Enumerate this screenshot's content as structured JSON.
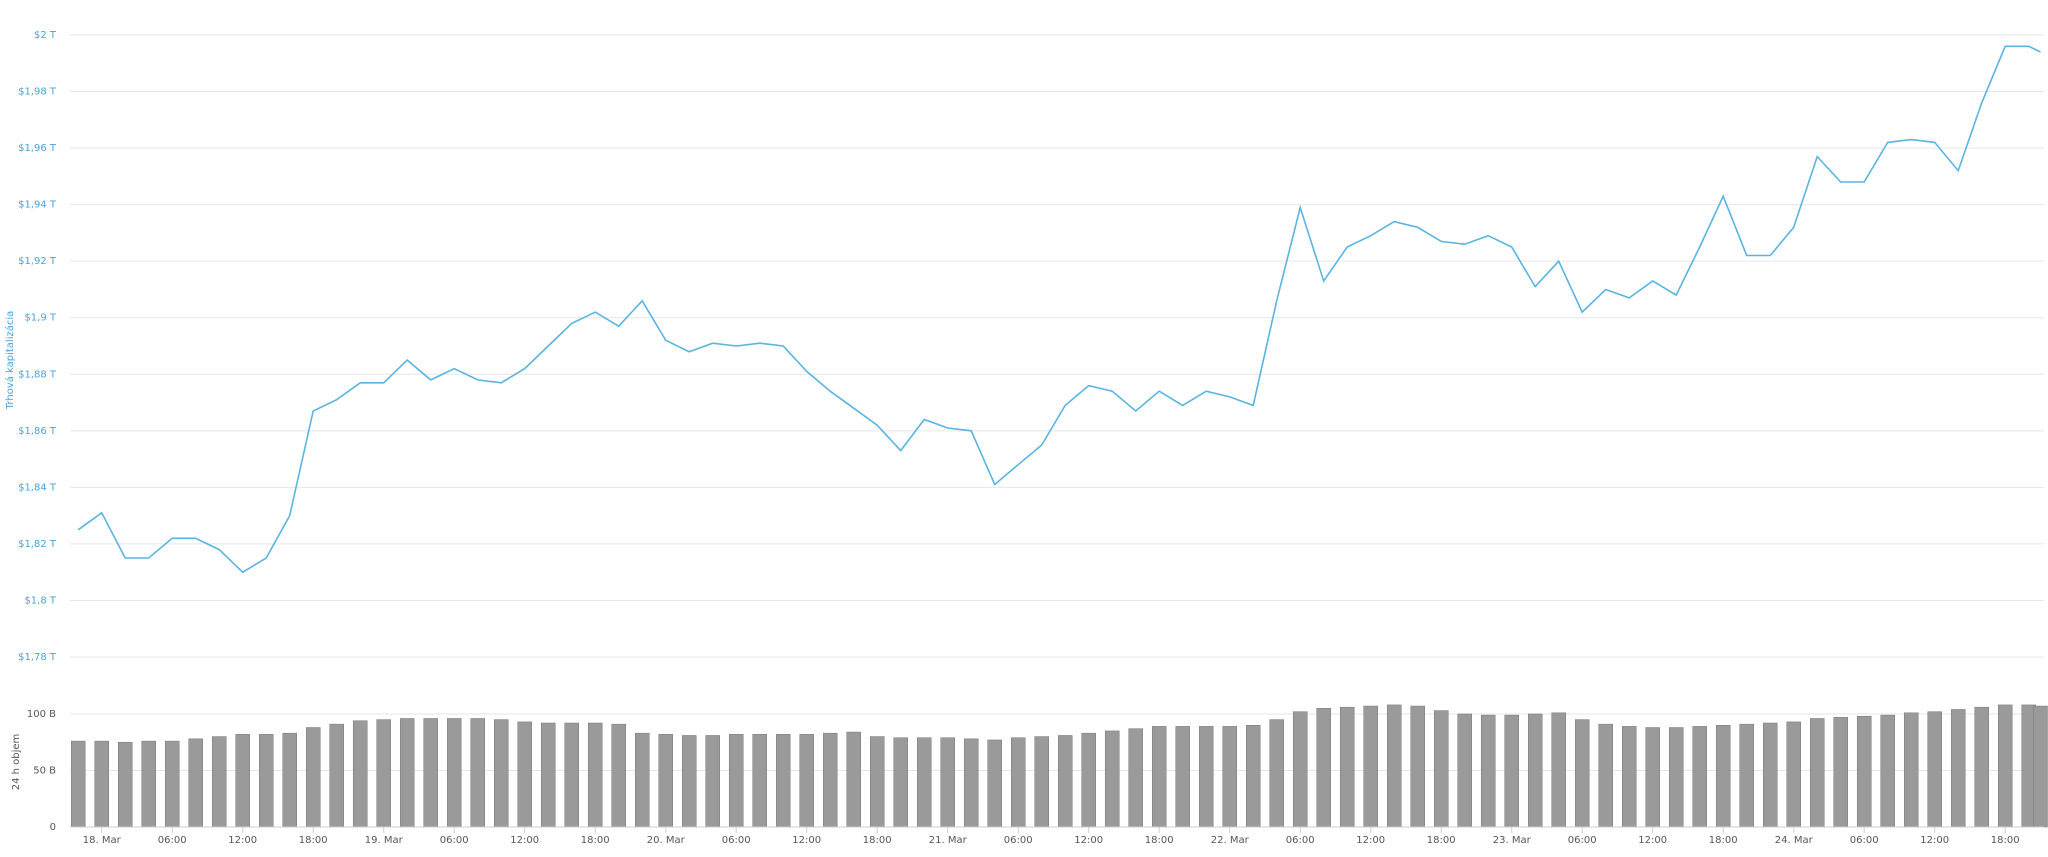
{
  "chart_data": [
    {
      "type": "line",
      "y_label": "Trhová kapitalizácia",
      "color": "#5ab4e0",
      "grid": true,
      "xlim": [
        -2.7,
        165.3
      ],
      "ylim": [
        1.78,
        2
      ],
      "yticks": [
        {
          "value": 1.78,
          "label": "$1,78 T"
        },
        {
          "value": 1.8,
          "label": "$1,8 T"
        },
        {
          "value": 1.82,
          "label": "$1,82 T"
        },
        {
          "value": 1.84,
          "label": "$1,84 T"
        },
        {
          "value": 1.86,
          "label": "$1,86 T"
        },
        {
          "value": 1.88,
          "label": "$1,88 T"
        },
        {
          "value": 1.9,
          "label": "$1,9 T"
        },
        {
          "value": 1.92,
          "label": "$1,92 T"
        },
        {
          "value": 1.94,
          "label": "$1,94 T"
        },
        {
          "value": 1.96,
          "label": "$1,96 T"
        },
        {
          "value": 1.98,
          "label": "$1,98 T"
        },
        {
          "value": 2,
          "label": "$2 T"
        }
      ],
      "x": [
        -2,
        0,
        2,
        4,
        6,
        8,
        10,
        12,
        14,
        16,
        18,
        20,
        22,
        24,
        26,
        28,
        30,
        32,
        34,
        36,
        38,
        40,
        42,
        44,
        46,
        48,
        50,
        52,
        54,
        56,
        58,
        60,
        62,
        64,
        66,
        68,
        70,
        72,
        74,
        76,
        78,
        80,
        82,
        84,
        86,
        88,
        90,
        92,
        94,
        96,
        98,
        100,
        102,
        104,
        106,
        108,
        110,
        112,
        114,
        116,
        118,
        120,
        122,
        124,
        126,
        128,
        130,
        132,
        134,
        136,
        138,
        140,
        142,
        144,
        146,
        148,
        150,
        152,
        154,
        156,
        158,
        160,
        162,
        164,
        165
      ],
      "values": [
        1.825,
        1.831,
        1.815,
        1.815,
        1.822,
        1.822,
        1.818,
        1.81,
        1.815,
        1.83,
        1.867,
        1.871,
        1.877,
        1.877,
        1.885,
        1.878,
        1.882,
        1.878,
        1.877,
        1.882,
        1.89,
        1.898,
        1.902,
        1.897,
        1.906,
        1.892,
        1.888,
        1.891,
        1.89,
        1.891,
        1.89,
        1.881,
        1.874,
        1.868,
        1.862,
        1.853,
        1.864,
        1.861,
        1.86,
        1.841,
        1.848,
        1.855,
        1.869,
        1.876,
        1.874,
        1.867,
        1.874,
        1.869,
        1.874,
        1.872,
        1.869,
        1.906,
        1.939,
        1.913,
        1.925,
        1.929,
        1.934,
        1.932,
        1.927,
        1.926,
        1.929,
        1.925,
        1.911,
        1.92,
        1.902,
        1.91,
        1.907,
        1.913,
        1.908,
        1.925,
        1.943,
        1.922,
        1.922,
        1.932,
        1.957,
        1.948,
        1.948,
        1.962,
        1.963,
        1.962,
        1.952,
        1.976,
        1.996,
        1.996,
        1.994
      ]
    },
    {
      "type": "bar",
      "y_label": "24 h objem",
      "color": "#9a9a9a",
      "grid": true,
      "xlim": [
        -2.7,
        165.3
      ],
      "ylim": [
        0,
        115
      ],
      "yticks": [
        0,
        {
          "value": 50,
          "label": "50 B"
        },
        {
          "value": 100,
          "label": "100 B"
        }
      ],
      "xticks": [
        {
          "value": 0,
          "label": "18. Mar"
        },
        {
          "value": 6,
          "label": "06:00"
        },
        {
          "value": 12,
          "label": "12:00"
        },
        {
          "value": 18,
          "label": "18:00"
        },
        {
          "value": 24,
          "label": "19. Mar"
        },
        {
          "value": 30,
          "label": "06:00"
        },
        {
          "value": 36,
          "label": "12:00"
        },
        {
          "value": 42,
          "label": "18:00"
        },
        {
          "value": 48,
          "label": "20. Mar"
        },
        {
          "value": 54,
          "label": "06:00"
        },
        {
          "value": 60,
          "label": "12:00"
        },
        {
          "value": 66,
          "label": "18:00"
        },
        {
          "value": 72,
          "label": "21. Mar"
        },
        {
          "value": 78,
          "label": "06:00"
        },
        {
          "value": 84,
          "label": "12:00"
        },
        {
          "value": 90,
          "label": "18:00"
        },
        {
          "value": 96,
          "label": "22. Mar"
        },
        {
          "value": 102,
          "label": "06:00"
        },
        {
          "value": 108,
          "label": "12:00"
        },
        {
          "value": 114,
          "label": "18:00"
        },
        {
          "value": 120,
          "label": "23. Mar"
        },
        {
          "value": 126,
          "label": "06:00"
        },
        {
          "value": 132,
          "label": "12:00"
        },
        {
          "value": 138,
          "label": "18:00"
        },
        {
          "value": 144,
          "label": "24. Mar"
        },
        {
          "value": 150,
          "label": "06:00"
        },
        {
          "value": 156,
          "label": "12:00"
        },
        {
          "value": 162,
          "label": "18:00"
        }
      ],
      "x": [
        -2,
        0,
        2,
        4,
        6,
        8,
        10,
        12,
        14,
        16,
        18,
        20,
        22,
        24,
        26,
        28,
        30,
        32,
        34,
        36,
        38,
        40,
        42,
        44,
        46,
        48,
        50,
        52,
        54,
        56,
        58,
        60,
        62,
        64,
        66,
        68,
        70,
        72,
        74,
        76,
        78,
        80,
        82,
        84,
        86,
        88,
        90,
        92,
        94,
        96,
        98,
        100,
        102,
        104,
        106,
        108,
        110,
        112,
        114,
        116,
        118,
        120,
        122,
        124,
        126,
        128,
        130,
        132,
        134,
        136,
        138,
        140,
        142,
        144,
        146,
        148,
        150,
        152,
        154,
        156,
        158,
        160,
        162,
        164,
        165
      ],
      "values": [
        76,
        76,
        75,
        76,
        76,
        78,
        80,
        82,
        82,
        83,
        88,
        91,
        94,
        95,
        96,
        96,
        96,
        96,
        95,
        93,
        92,
        92,
        92,
        91,
        83,
        82,
        81,
        81,
        82,
        82,
        82,
        82,
        83,
        84,
        80,
        79,
        79,
        79,
        78,
        77,
        79,
        80,
        81,
        83,
        85,
        87,
        89,
        89,
        89,
        89,
        90,
        95,
        102,
        105,
        106,
        107,
        108,
        107,
        103,
        100,
        99,
        99,
        100,
        101,
        95,
        91,
        89,
        88,
        88,
        89,
        90,
        91,
        92,
        93,
        96,
        97,
        98,
        99,
        101,
        102,
        104,
        106,
        108,
        108,
        107
      ]
    }
  ]
}
